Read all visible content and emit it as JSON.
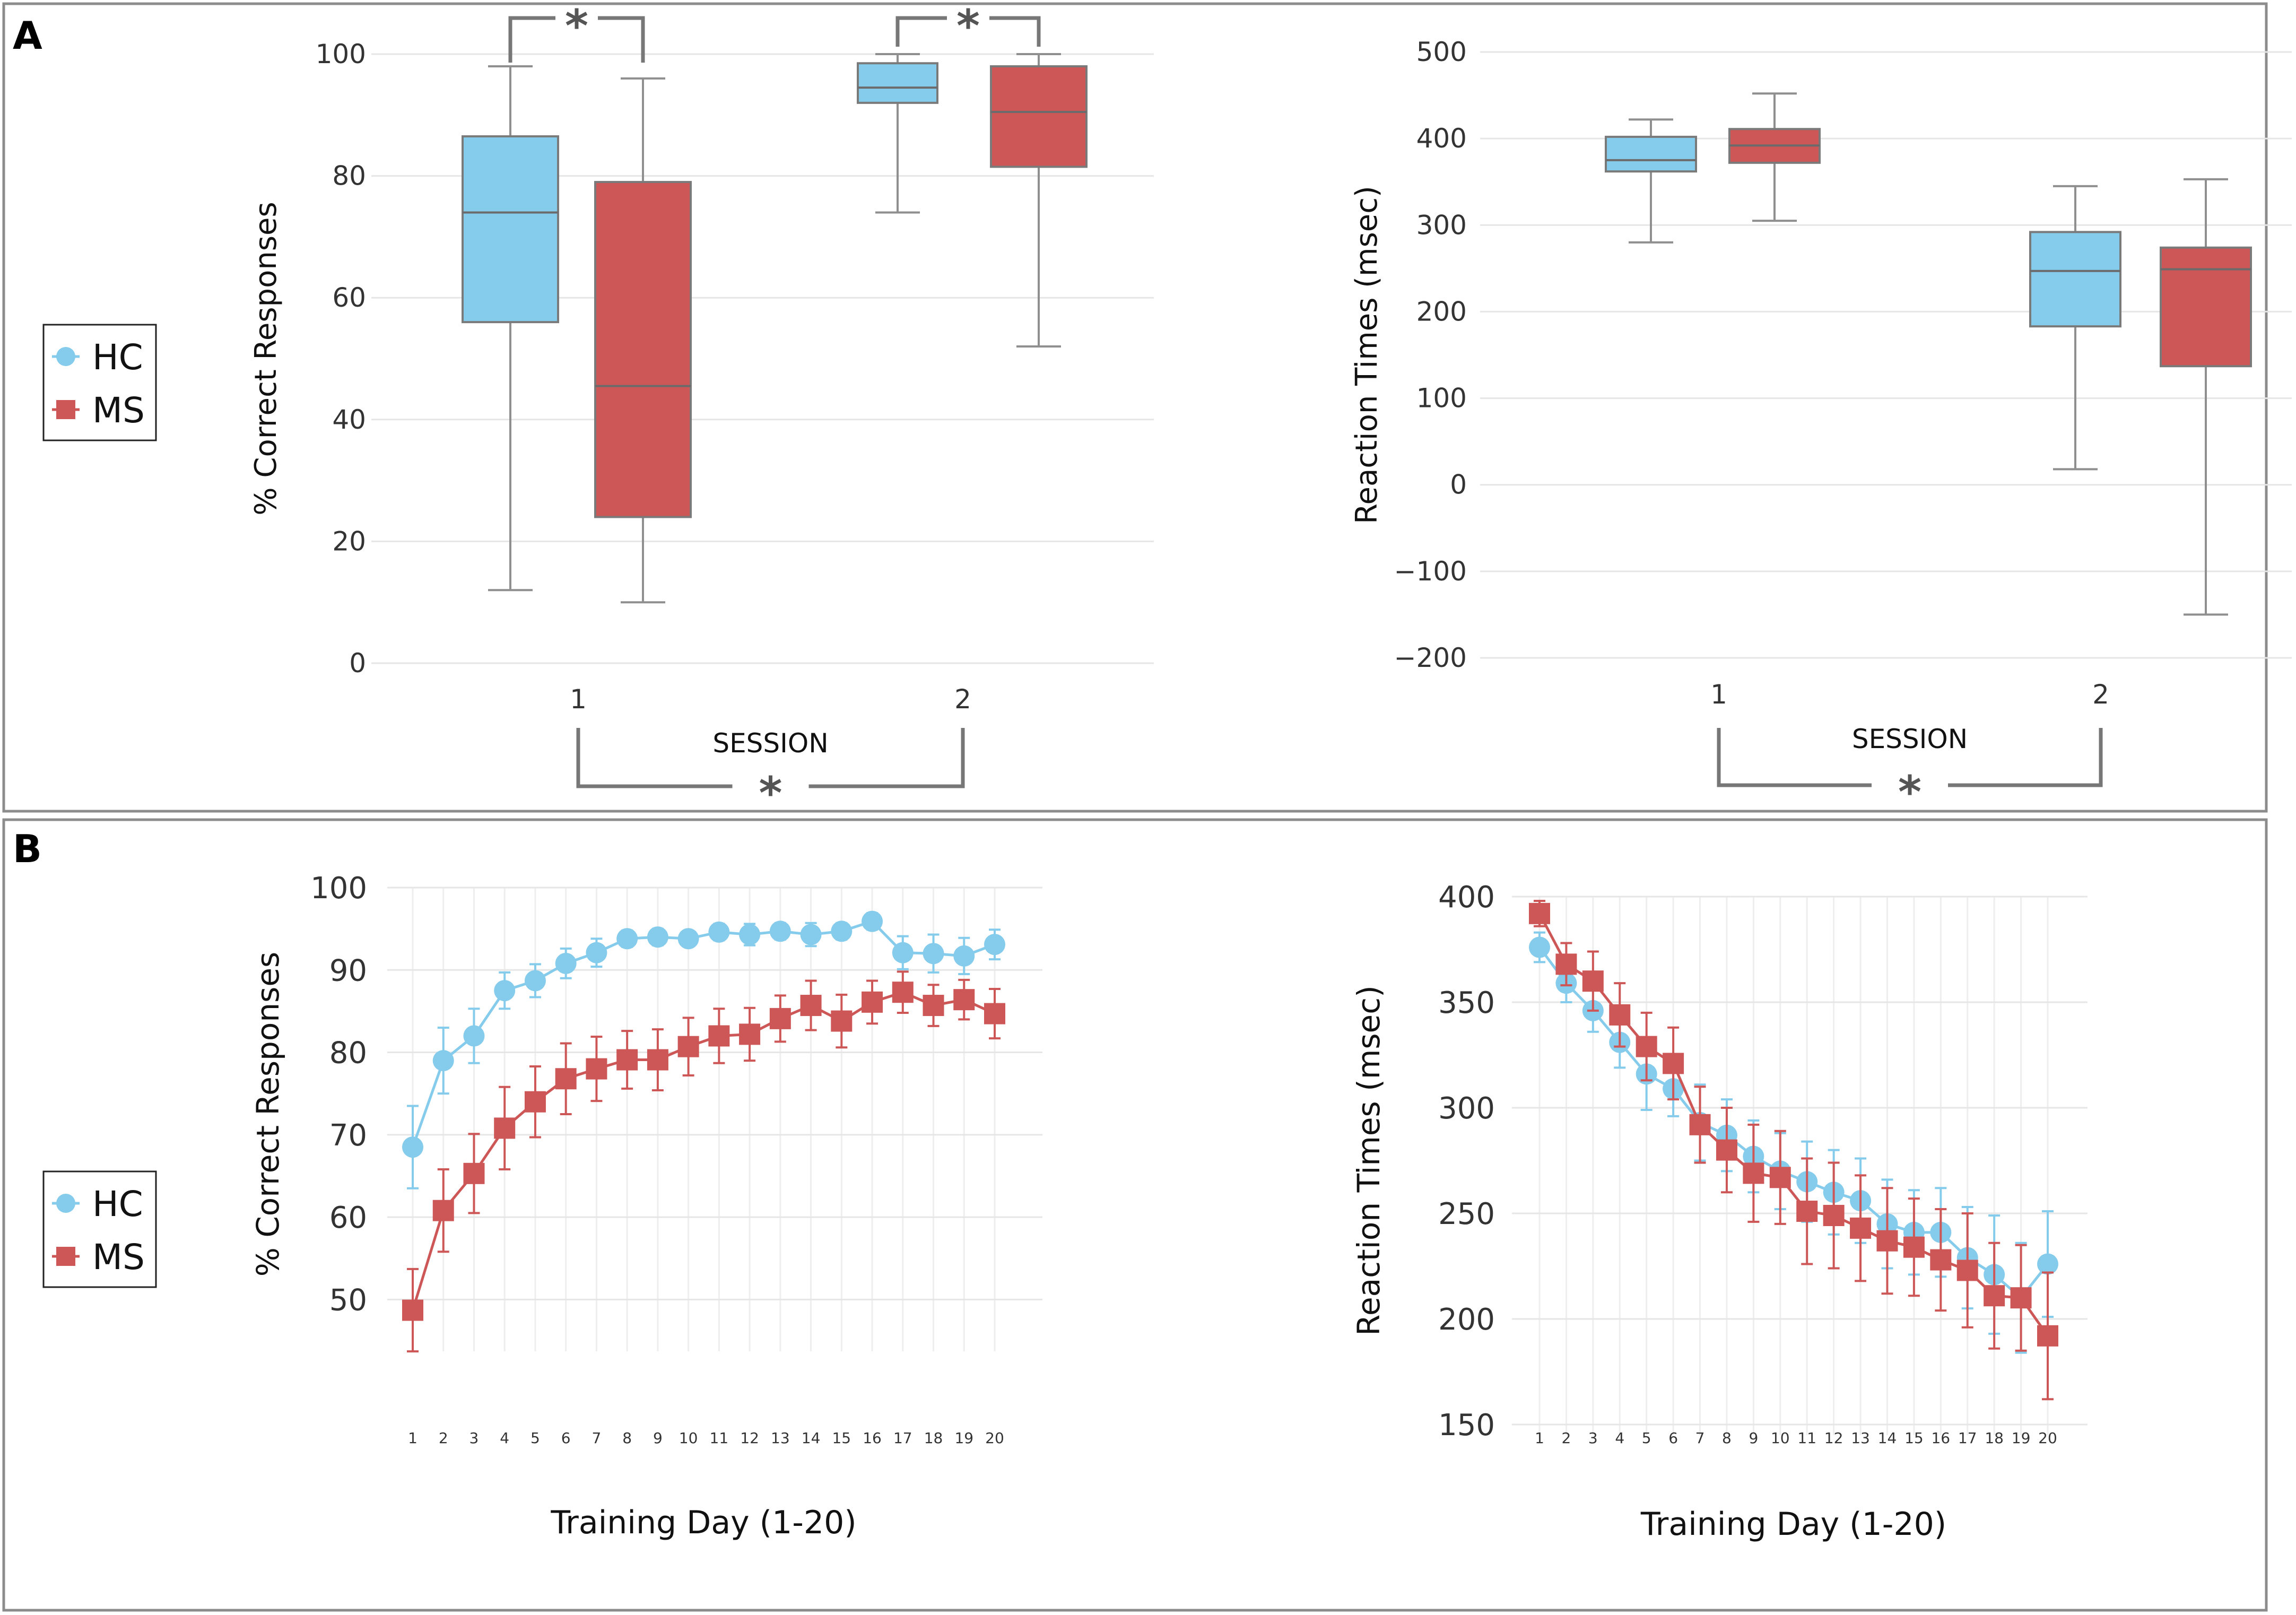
{
  "figure": {
    "panel_labels": [
      "A",
      "B"
    ],
    "colors": {
      "hc": "#85cbeb",
      "ms": "#cd5656",
      "bracket": "#777777",
      "axis_text": "#333333",
      "grid": "#e6e6e6"
    },
    "legend": {
      "hc_label": "HC",
      "ms_label": "MS"
    },
    "significance_marker": "*"
  },
  "chart_data": [
    {
      "id": "A-accuracy",
      "type": "box",
      "title": "",
      "xlabel": "SESSION",
      "ylabel": "% Correct Responses",
      "categories": [
        "1",
        "2"
      ],
      "ylim": [
        0,
        100
      ],
      "yticks": [
        0,
        20,
        40,
        60,
        80,
        100
      ],
      "grid": true,
      "series": [
        {
          "name": "HC",
          "boxes": [
            {
              "min": 12,
              "q1": 56,
              "median": 74,
              "q3": 86.5,
              "max": 98
            },
            {
              "min": 74,
              "q1": 92,
              "median": 94.5,
              "q3": 98.5,
              "max": 100
            }
          ]
        },
        {
          "name": "MS",
          "boxes": [
            {
              "min": 10,
              "q1": 24,
              "median": 45.5,
              "q3": 79,
              "max": 96
            },
            {
              "min": 52,
              "q1": 81.5,
              "median": 90.5,
              "q3": 98,
              "max": 100
            }
          ]
        }
      ],
      "annotations": [
        "* between HC and MS in session 1",
        "* between HC and MS in session 2",
        "* between session 1 and session 2"
      ]
    },
    {
      "id": "A-rt",
      "type": "box",
      "title": "",
      "xlabel": "SESSION",
      "ylabel": "Reaction Times (msec)",
      "categories": [
        "1",
        "2"
      ],
      "ylim": [
        -200,
        500
      ],
      "yticks": [
        -200,
        -100,
        0,
        100,
        200,
        300,
        400,
        500
      ],
      "grid": true,
      "series": [
        {
          "name": "HC",
          "boxes": [
            {
              "min": 280,
              "q1": 362,
              "median": 375,
              "q3": 402,
              "max": 422
            },
            {
              "min": 18,
              "q1": 183,
              "median": 247,
              "q3": 292,
              "max": 345
            }
          ]
        },
        {
          "name": "MS",
          "boxes": [
            {
              "min": 305,
              "q1": 372,
              "median": 392,
              "q3": 411,
              "max": 452
            },
            {
              "min": -150,
              "q1": 137,
              "median": 249,
              "q3": 274,
              "max": 353
            }
          ]
        }
      ],
      "annotations": [
        "* between session 1 and session 2"
      ]
    },
    {
      "id": "B-accuracy",
      "type": "line",
      "title": "",
      "xlabel": "Training Day (1-20)",
      "ylabel": "% Correct Responses",
      "x": [
        1,
        2,
        3,
        4,
        5,
        6,
        7,
        8,
        9,
        10,
        11,
        12,
        13,
        14,
        15,
        16,
        17,
        18,
        19,
        20
      ],
      "ylim": [
        45,
        100
      ],
      "yticks": [
        50,
        60,
        70,
        80,
        90,
        100
      ],
      "grid": true,
      "series": [
        {
          "name": "HC",
          "values": [
            68.5,
            79,
            82,
            87.5,
            88.7,
            90.8,
            92.1,
            93.8,
            94,
            93.8,
            94.6,
            94.3,
            94.7,
            94.3,
            94.7,
            95.9,
            92.1,
            92,
            91.7,
            93.1
          ],
          "errors": [
            5,
            4,
            3.3,
            2.2,
            2,
            1.8,
            1.7,
            1,
            1,
            0.9,
            1,
            1.3,
            1,
            1.4,
            1,
            1,
            2,
            2.3,
            2.2,
            1.8
          ]
        },
        {
          "name": "MS",
          "values": [
            48.7,
            60.8,
            65.3,
            70.8,
            74,
            76.8,
            78,
            79.1,
            79.1,
            80.7,
            82,
            82.2,
            84.1,
            85.7,
            83.8,
            86.1,
            87.3,
            85.7,
            86.4,
            84.7
          ],
          "errors": [
            5,
            5,
            4.8,
            5,
            4.3,
            4.3,
            3.9,
            3.5,
            3.7,
            3.5,
            3.3,
            3.2,
            2.8,
            3,
            3.2,
            2.6,
            2.5,
            2.5,
            2.4,
            3
          ]
        }
      ]
    },
    {
      "id": "B-rt",
      "type": "line",
      "title": "",
      "xlabel": "Training Day (1-20)",
      "ylabel": "Reaction Times (msec)",
      "x": [
        1,
        2,
        3,
        4,
        5,
        6,
        7,
        8,
        9,
        10,
        11,
        12,
        13,
        14,
        15,
        16,
        17,
        18,
        19,
        20
      ],
      "ylim": [
        150,
        400
      ],
      "yticks": [
        150,
        200,
        250,
        300,
        350,
        400
      ],
      "grid": true,
      "series": [
        {
          "name": "HC",
          "values": [
            376,
            359,
            346,
            331,
            316,
            309,
            293,
            287,
            277,
            270,
            265,
            260,
            256,
            245,
            241,
            241,
            229,
            221,
            210,
            226
          ],
          "errors": [
            7,
            9,
            10,
            12,
            17,
            13,
            18,
            17,
            17,
            18,
            19,
            20,
            20,
            21,
            20,
            21,
            24,
            28,
            26,
            25
          ]
        },
        {
          "name": "MS",
          "values": [
            392,
            368,
            360,
            344,
            329,
            321,
            292,
            280,
            269,
            267,
            251,
            249,
            243,
            237,
            234,
            228,
            223,
            211,
            210,
            192
          ],
          "errors": [
            6,
            10,
            14,
            15,
            16,
            17,
            18,
            20,
            23,
            22,
            25,
            25,
            25,
            25,
            23,
            24,
            27,
            25,
            25,
            30
          ]
        }
      ]
    }
  ]
}
